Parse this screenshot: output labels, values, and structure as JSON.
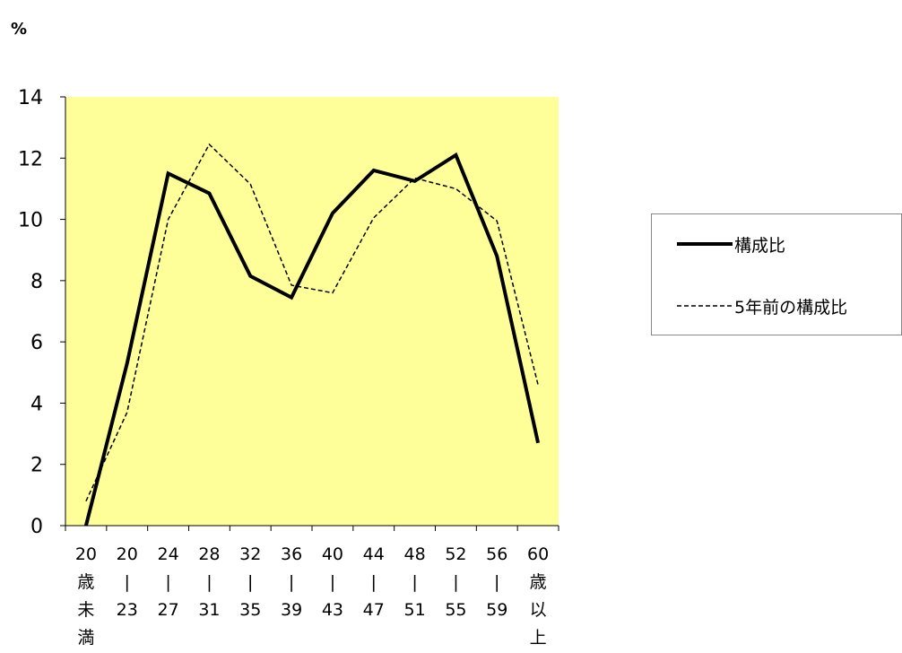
{
  "chart_data": {
    "type": "line",
    "ylabel": "%",
    "ylim": [
      0,
      14
    ],
    "yticks": [
      "0",
      "2",
      "4",
      "6",
      "8",
      "10",
      "12",
      "14"
    ],
    "categories": [
      [
        "20",
        "歳",
        "未",
        "満"
      ],
      [
        "20",
        "|",
        "23"
      ],
      [
        "24",
        "|",
        "27"
      ],
      [
        "28",
        "|",
        "31"
      ],
      [
        "32",
        "|",
        "35"
      ],
      [
        "36",
        "|",
        "39"
      ],
      [
        "40",
        "|",
        "43"
      ],
      [
        "44",
        "|",
        "47"
      ],
      [
        "48",
        "|",
        "51"
      ],
      [
        "52",
        "|",
        "55"
      ],
      [
        "56",
        "|",
        "59"
      ],
      [
        "60",
        "歳",
        "以",
        "上"
      ]
    ],
    "series": [
      {
        "name": "構成比",
        "values": [
          0,
          5.3,
          11.5,
          10.85,
          8.15,
          7.45,
          10.2,
          11.6,
          11.25,
          12.1,
          8.8,
          2.7
        ]
      },
      {
        "name": "5年前の構成比",
        "values": [
          0.8,
          3.7,
          10.0,
          12.45,
          11.15,
          7.85,
          7.6,
          10.05,
          11.35,
          11.0,
          9.95,
          4.6
        ]
      }
    ],
    "colors": {
      "plot_background": "#ffff99",
      "series_0": "#000000",
      "series_1": "#000000"
    },
    "legend_position": "right",
    "grid": false
  }
}
